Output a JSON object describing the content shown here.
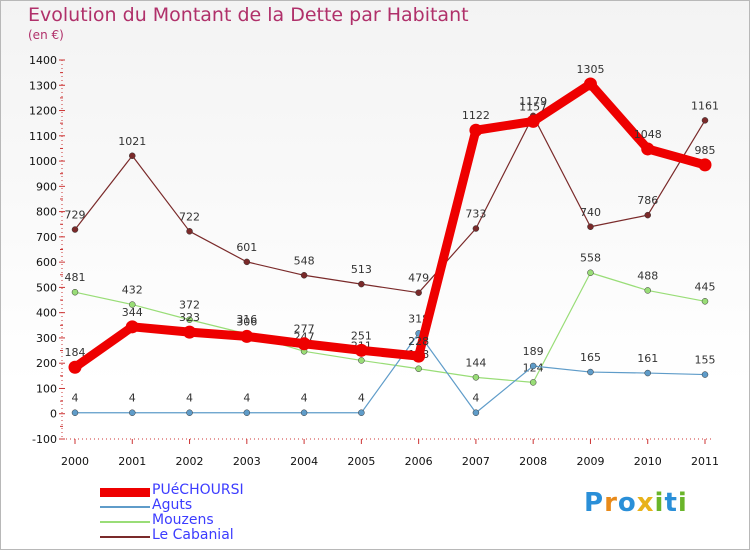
{
  "title": "Evolution du Montant de la Dette par Habitant",
  "unit": "(en €)",
  "logo": {
    "text": "Proxiti",
    "letters": [
      "P",
      "r",
      "o",
      "x",
      "i",
      "t",
      "i"
    ],
    "colors": [
      "#2a8fd8",
      "#e88a1a",
      "#2a8fd8",
      "#e8b21a",
      "#6ab52a",
      "#2a8fd8",
      "#6ab52a"
    ]
  },
  "chart_data": {
    "type": "line",
    "title": "Evolution du Montant de la Dette par Habitant",
    "ylabel": "(en €)",
    "xlabel": "",
    "ylim": [
      -100,
      1400
    ],
    "yticks": [
      -100,
      0,
      100,
      200,
      300,
      400,
      500,
      600,
      700,
      800,
      900,
      1000,
      1100,
      1200,
      1300,
      1400
    ],
    "x": [
      "2000",
      "2001",
      "2002",
      "2003",
      "2004",
      "2005",
      "2006",
      "2007",
      "2008",
      "2009",
      "2010",
      "2011"
    ],
    "grid": false,
    "legend": "bottom-left",
    "series": [
      {
        "name": "Le Cabanial",
        "color": "#7a2a2a",
        "values": [
          729,
          1021,
          722,
          601,
          548,
          513,
          479,
          733,
          1179,
          740,
          786,
          1161
        ]
      },
      {
        "name": "Mouzens",
        "color": "#99dd77",
        "values": [
          481,
          432,
          372,
          316,
          247,
          211,
          178,
          144,
          124,
          558,
          488,
          445
        ]
      },
      {
        "name": "Aguts",
        "color": "#5f9cc9",
        "values": [
          4,
          4,
          4,
          4,
          4,
          4,
          318,
          4,
          189,
          165,
          161,
          155
        ]
      },
      {
        "name": "PUéCHOURSI",
        "color": "#ee0000",
        "values": [
          184,
          344,
          323,
          306,
          277,
          251,
          228,
          1122,
          1157,
          1305,
          1048,
          985
        ]
      }
    ]
  }
}
